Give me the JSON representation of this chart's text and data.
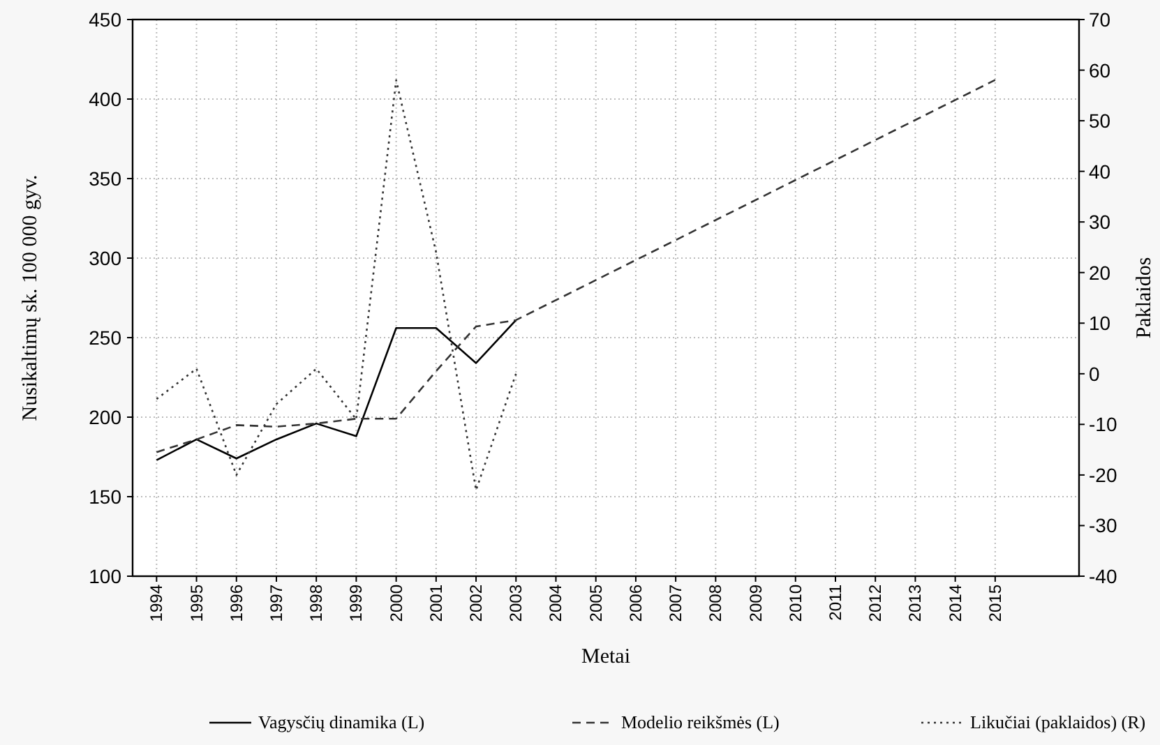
{
  "chart_data": {
    "type": "line",
    "xlabel": "Metai",
    "ylabel": "Nusikaltimų sk. 100 000 gyv.",
    "y2label": "Paklaidos",
    "xlim": [
      1993.4,
      2017.1
    ],
    "xticks": [
      1994,
      1995,
      1996,
      1997,
      1998,
      1999,
      2000,
      2001,
      2002,
      2003,
      2004,
      2005,
      2006,
      2007,
      2008,
      2009,
      2010,
      2011,
      2012,
      2013,
      2014,
      2015
    ],
    "ylim": [
      100,
      450
    ],
    "yticks": [
      100,
      150,
      200,
      250,
      300,
      350,
      400,
      450
    ],
    "y2lim": [
      -40,
      70
    ],
    "y2ticks": [
      -40,
      -30,
      -20,
      -10,
      0,
      10,
      20,
      30,
      40,
      50,
      60,
      70
    ],
    "grid": true,
    "legend": "bottom",
    "series": [
      {
        "name": "Vagysčių dinamika (L)",
        "color": "#000000",
        "line_style": "solid",
        "x": [
          1994,
          1995,
          1996,
          1997,
          1998,
          1999,
          2000,
          2001,
          2002,
          2003
        ],
        "values": [
          173,
          186,
          174,
          186,
          196,
          188,
          256,
          256,
          234,
          261
        ]
      },
      {
        "name": "Modelio reikšmės (L)",
        "color": "#333333",
        "line_style": "dashed",
        "x": [
          1994,
          1995,
          1996,
          1997,
          1998,
          1999,
          2000,
          2001,
          2002,
          2003,
          2015
        ],
        "values": [
          178,
          186,
          195,
          194,
          196,
          199,
          199,
          229,
          257,
          261,
          412
        ]
      },
      {
        "name": "Likučiai (paklaidos) (R)",
        "color": "#333333",
        "line_style": "dotted",
        "axis": "y2",
        "x": [
          1994,
          1995,
          1996,
          1997,
          1998,
          1999,
          2000,
          2001,
          2002,
          2003
        ],
        "values": [
          -5,
          1,
          -20,
          -6,
          1,
          -9,
          58,
          24,
          -23,
          0
        ]
      }
    ]
  }
}
